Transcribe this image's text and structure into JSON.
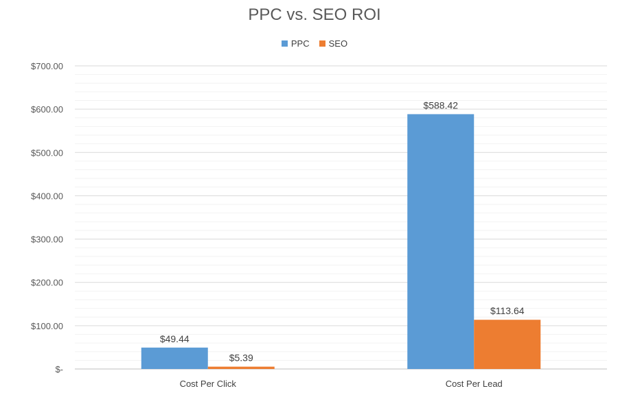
{
  "chart_data": {
    "type": "bar",
    "title": "PPC vs. SEO ROI",
    "categories": [
      "Cost Per Click",
      "Cost Per Lead"
    ],
    "series": [
      {
        "name": "PPC",
        "color": "#5B9BD5",
        "values": [
          49.44,
          588.42
        ],
        "labels": [
          "$49.44",
          "$588.42"
        ]
      },
      {
        "name": "SEO",
        "color": "#ED7D31",
        "values": [
          5.39,
          113.64
        ],
        "labels": [
          "$5.39",
          "$113.64"
        ]
      }
    ],
    "ylim": [
      0,
      700
    ],
    "yticks": [
      {
        "value": 0,
        "label": "$-"
      },
      {
        "value": 100,
        "label": "$100.00"
      },
      {
        "value": 200,
        "label": "$200.00"
      },
      {
        "value": 300,
        "label": "$300.00"
      },
      {
        "value": 400,
        "label": "$400.00"
      },
      {
        "value": 500,
        "label": "$500.00"
      },
      {
        "value": 600,
        "label": "$600.00"
      },
      {
        "value": 700,
        "label": "$700.00"
      }
    ],
    "minor_gridlines": true,
    "legend_position": "top-center"
  }
}
